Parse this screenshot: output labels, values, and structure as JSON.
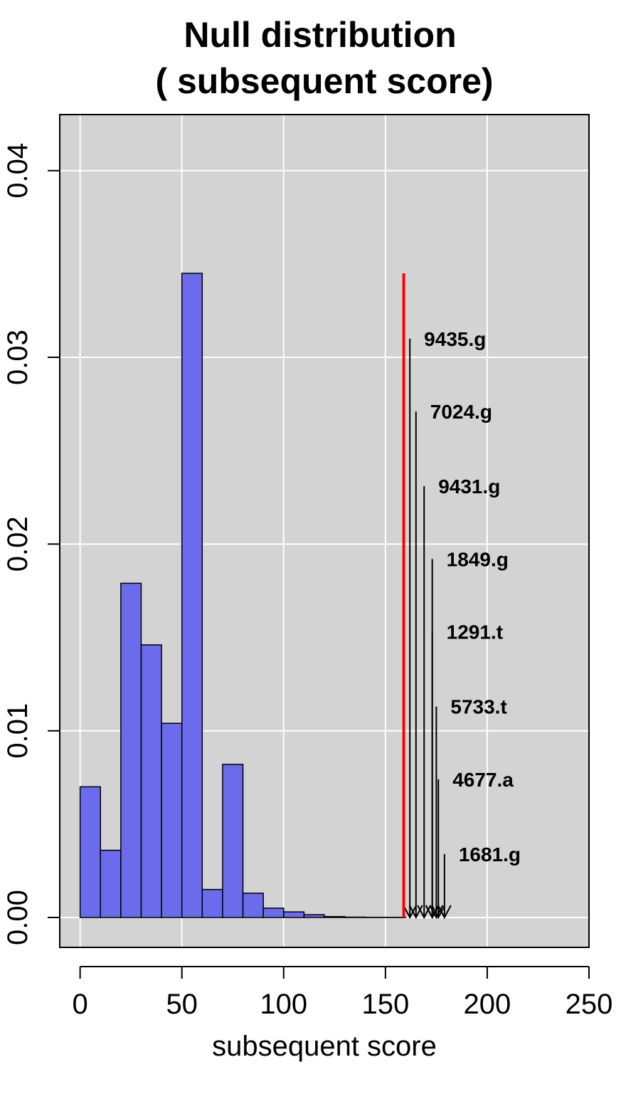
{
  "chart_data": {
    "type": "bar",
    "title_line1": "Null distribution",
    "title_line2": "( subsequent score)",
    "xlabel": "subsequent score",
    "ylabel": "",
    "xlim": [
      -10,
      250
    ],
    "ylim": [
      -0.0016,
      0.043
    ],
    "grid": true,
    "background": "#d3d3d3",
    "bar_color": "#6b6bec",
    "x_ticks": [
      0,
      50,
      100,
      150,
      200,
      250
    ],
    "y_ticks": [
      0.0,
      0.01,
      0.02,
      0.03,
      0.04
    ],
    "x_tick_labels": [
      "0",
      "50",
      "100",
      "150",
      "200",
      "250"
    ],
    "y_tick_labels": [
      "0.00",
      "0.01",
      "0.02",
      "0.03",
      "0.04"
    ],
    "bins": [
      {
        "start": 0,
        "end": 10,
        "density": 0.007
      },
      {
        "start": 10,
        "end": 20,
        "density": 0.0036
      },
      {
        "start": 20,
        "end": 30,
        "density": 0.0179
      },
      {
        "start": 30,
        "end": 40,
        "density": 0.0146
      },
      {
        "start": 40,
        "end": 50,
        "density": 0.0104
      },
      {
        "start": 50,
        "end": 60,
        "density": 0.0345
      },
      {
        "start": 60,
        "end": 70,
        "density": 0.0015
      },
      {
        "start": 70,
        "end": 80,
        "density": 0.0082
      },
      {
        "start": 80,
        "end": 90,
        "density": 0.0013
      },
      {
        "start": 90,
        "end": 100,
        "density": 0.0005
      },
      {
        "start": 100,
        "end": 110,
        "density": 0.0003
      },
      {
        "start": 110,
        "end": 120,
        "density": 0.00015
      },
      {
        "start": 120,
        "end": 130,
        "density": 5e-05
      },
      {
        "start": 130,
        "end": 140,
        "density": 2e-05
      },
      {
        "start": 140,
        "end": 150,
        "density": 1e-05
      },
      {
        "start": 150,
        "end": 160,
        "density": 1e-05
      }
    ],
    "threshold": {
      "x": 159,
      "height": 0.0345,
      "color": "#ff0000"
    },
    "annotations": [
      {
        "label": "9435.g",
        "x": 162,
        "height": 0.031
      },
      {
        "label": "7024.g",
        "x": 165,
        "height": 0.0271
      },
      {
        "label": "9431.g",
        "x": 169,
        "height": 0.0231
      },
      {
        "label": "1849.g",
        "x": 173,
        "height": 0.0192
      },
      {
        "label": "1291.t",
        "x": 173,
        "height": 0.0153
      },
      {
        "label": "5733.t",
        "x": 175,
        "height": 0.0113
      },
      {
        "label": "4677.a",
        "x": 176,
        "height": 0.0074
      },
      {
        "label": "1681.g",
        "x": 179,
        "height": 0.0034
      }
    ]
  }
}
